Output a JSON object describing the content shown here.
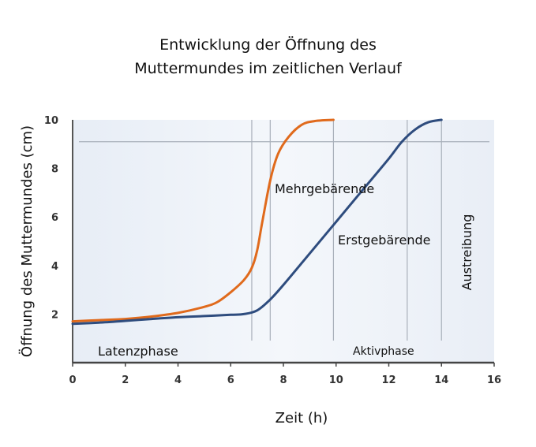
{
  "title_lines": [
    "Entwicklung der Öffnung des",
    "Muttermundes im zeitlichen Verlauf"
  ],
  "chart_data": {
    "type": "line",
    "title": "Entwicklung der Öffnung des Muttermundes im zeitlichen Verlauf",
    "xlabel": "Zeit (h)",
    "ylabel": "Öffnung des Muttermundes (cm)",
    "xlim": [
      0,
      16
    ],
    "ylim": [
      0,
      10
    ],
    "xticks": [
      0,
      2,
      4,
      6,
      8,
      10,
      12,
      14,
      16
    ],
    "yticks": [
      2,
      4,
      6,
      8,
      10
    ],
    "series": [
      {
        "name": "Mehrgebärende",
        "color": "#E06A1C",
        "x": [
          0,
          1,
          2,
          3,
          4,
          5,
          5.5,
          6,
          6.5,
          6.8,
          7.0,
          7.2,
          7.5,
          7.8,
          8.2,
          8.7,
          9.2,
          9.9
        ],
        "y": [
          1.7,
          1.75,
          1.8,
          1.9,
          2.05,
          2.3,
          2.5,
          2.9,
          3.4,
          3.9,
          4.6,
          5.8,
          7.5,
          8.6,
          9.3,
          9.8,
          9.95,
          10.0
        ]
      },
      {
        "name": "Erstgebärende",
        "color": "#2E4C7E",
        "x": [
          0,
          1,
          2,
          3,
          4,
          5,
          6,
          6.5,
          7.0,
          7.5,
          8,
          9,
          10,
          11,
          12,
          12.5,
          13,
          13.5,
          14
        ],
        "y": [
          1.6,
          1.65,
          1.72,
          1.8,
          1.87,
          1.92,
          1.97,
          2.0,
          2.15,
          2.6,
          3.2,
          4.5,
          5.8,
          7.1,
          8.4,
          9.1,
          9.6,
          9.9,
          10.0
        ]
      }
    ],
    "vertical_lines_x": [
      6.8,
      7.5,
      9.9,
      12.7,
      14.0
    ],
    "horizontal_line_y": 9.1,
    "annotations": [
      "Mehrgebärende",
      "Erstgebärende",
      "Latenzphase",
      "Aktivphase",
      "Austreibung"
    ],
    "grid": false
  }
}
